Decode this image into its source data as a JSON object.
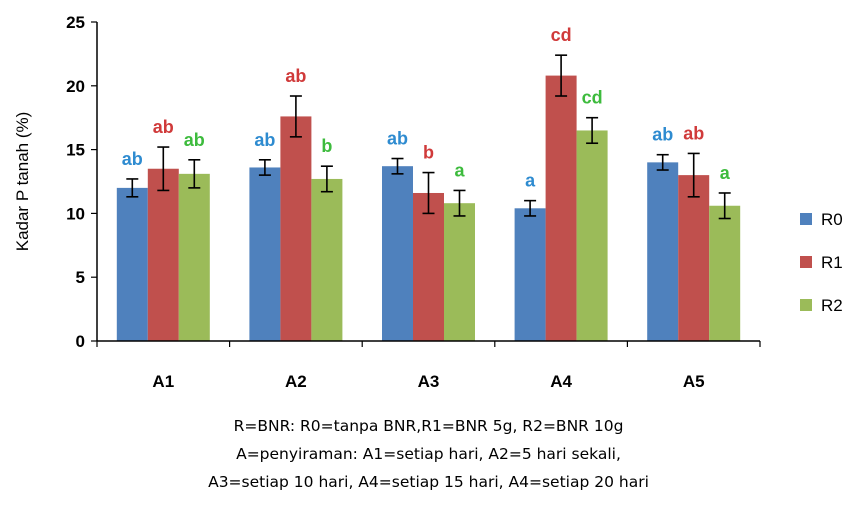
{
  "chart_data": {
    "type": "bar",
    "title": "",
    "xlabel": "",
    "ylabel": "Kadar P tanah (%)",
    "ylim": [
      0,
      25
    ],
    "yticks": [
      0,
      5,
      10,
      15,
      20,
      25
    ],
    "grid": false,
    "legend_position": "right",
    "categories": [
      "A1",
      "A2",
      "A3",
      "A4",
      "A5"
    ],
    "series": [
      {
        "name": "R0",
        "color": "#4F81BD",
        "label_color": "#2E8BD0",
        "values": [
          12.0,
          13.6,
          13.7,
          10.4,
          14.0
        ],
        "errors": [
          0.7,
          0.6,
          0.6,
          0.6,
          0.6
        ],
        "labels": [
          "ab",
          "ab",
          "ab",
          "a",
          "ab"
        ]
      },
      {
        "name": "R1",
        "color": "#C0504D",
        "label_color": "#D03A3A",
        "values": [
          13.5,
          17.6,
          11.6,
          20.8,
          13.0
        ],
        "errors": [
          1.7,
          1.6,
          1.6,
          1.6,
          1.7
        ],
        "labels": [
          "ab",
          "ab",
          "b",
          "cd",
          "ab"
        ]
      },
      {
        "name": "R2",
        "color": "#9BBB59",
        "label_color": "#3DBB3D",
        "values": [
          13.1,
          12.7,
          10.8,
          16.5,
          10.6
        ],
        "errors": [
          1.1,
          1.0,
          1.0,
          1.0,
          1.0
        ],
        "labels": [
          "ab",
          "b",
          "a",
          "cd",
          "a"
        ]
      }
    ]
  },
  "caption": {
    "line1": "R=BNR: R0=tanpa BNR,R1=BNR 5g, R2=BNR 10g",
    "line2": "A=penyiraman:  A1=setiap hari, A2=5 hari sekali,",
    "line3": "A3=setiap 10 hari, A4=setiap 15 hari, A4=setiap 20 hari"
  }
}
